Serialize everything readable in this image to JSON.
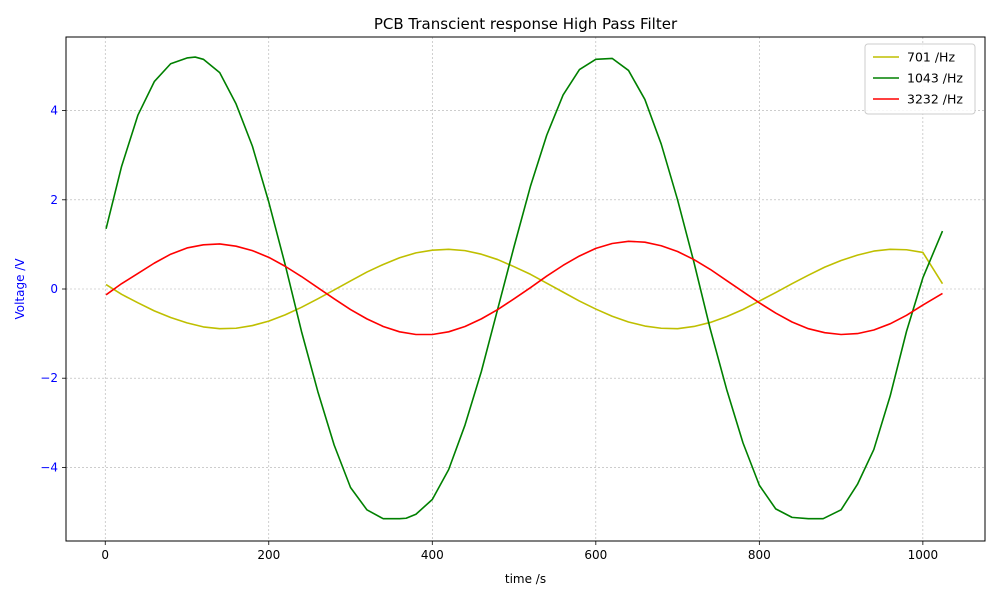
{
  "chart_data": {
    "type": "line",
    "title": "PCB Transcient response High Pass Filter",
    "xlabel": "time /s",
    "ylabel": "Voltage /V",
    "xlim": [
      -48,
      1076
    ],
    "ylim": [
      -5.65,
      5.65
    ],
    "xticks": [
      0,
      200,
      400,
      600,
      800,
      1000
    ],
    "yticks": [
      -4,
      -2,
      0,
      2,
      4
    ],
    "xtick_labels": [
      "0",
      "200",
      "400",
      "600",
      "800",
      "1000"
    ],
    "ytick_labels": [
      "−4",
      "−2",
      "0",
      "2",
      "4"
    ],
    "grid": true,
    "legend_position": "top-right",
    "ylabel_color": "#0000ff",
    "ytick_color": "#0000ff",
    "series": [
      {
        "name": "701 /Hz",
        "color": "#bfbf00",
        "x": [
          1,
          20,
          40,
          60,
          80,
          100,
          120,
          140,
          160,
          180,
          200,
          220,
          240,
          260,
          280,
          300,
          320,
          340,
          360,
          380,
          400,
          420,
          440,
          460,
          480,
          500,
          520,
          540,
          560,
          580,
          600,
          620,
          640,
          660,
          680,
          700,
          720,
          740,
          760,
          780,
          800,
          820,
          840,
          860,
          880,
          900,
          920,
          940,
          960,
          980,
          1000,
          1024
        ],
        "y": [
          0.1,
          -0.12,
          -0.31,
          -0.49,
          -0.64,
          -0.76,
          -0.85,
          -0.89,
          -0.88,
          -0.82,
          -0.72,
          -0.58,
          -0.41,
          -0.22,
          -0.02,
          0.18,
          0.38,
          0.55,
          0.7,
          0.81,
          0.87,
          0.89,
          0.86,
          0.78,
          0.66,
          0.5,
          0.33,
          0.13,
          -0.07,
          -0.27,
          -0.45,
          -0.61,
          -0.74,
          -0.83,
          -0.88,
          -0.89,
          -0.84,
          -0.75,
          -0.62,
          -0.46,
          -0.27,
          -0.08,
          0.12,
          0.31,
          0.49,
          0.64,
          0.76,
          0.85,
          0.89,
          0.88,
          0.82,
          0.12
        ]
      },
      {
        "name": "1043 /Hz",
        "color": "#008000",
        "x": [
          1,
          20,
          40,
          60,
          80,
          100,
          110,
          120,
          140,
          160,
          180,
          200,
          220,
          240,
          260,
          280,
          300,
          320,
          340,
          360,
          368,
          380,
          400,
          420,
          440,
          460,
          480,
          500,
          520,
          540,
          560,
          580,
          600,
          620,
          640,
          660,
          680,
          700,
          720,
          740,
          760,
          780,
          800,
          820,
          840,
          860,
          878,
          900,
          920,
          940,
          960,
          980,
          1000,
          1024
        ],
        "y": [
          1.35,
          2.75,
          3.9,
          4.65,
          5.05,
          5.18,
          5.2,
          5.15,
          4.85,
          4.15,
          3.2,
          1.95,
          0.55,
          -0.95,
          -2.3,
          -3.5,
          -4.45,
          -4.95,
          -5.15,
          -5.15,
          -5.14,
          -5.05,
          -4.72,
          -4.05,
          -3.05,
          -1.85,
          -0.45,
          0.95,
          2.3,
          3.45,
          4.35,
          4.92,
          5.15,
          5.17,
          4.9,
          4.25,
          3.25,
          2.0,
          0.6,
          -0.9,
          -2.25,
          -3.45,
          -4.4,
          -4.93,
          -5.12,
          -5.15,
          -5.15,
          -4.95,
          -4.38,
          -3.6,
          -2.4,
          -0.95,
          0.25,
          1.3
        ]
      },
      {
        "name": "3232 /Hz",
        "color": "#ff0000",
        "x": [
          1,
          20,
          40,
          60,
          80,
          100,
          120,
          140,
          160,
          180,
          200,
          220,
          240,
          260,
          280,
          300,
          320,
          340,
          360,
          380,
          400,
          420,
          440,
          460,
          480,
          500,
          520,
          540,
          560,
          580,
          600,
          620,
          640,
          660,
          680,
          700,
          720,
          740,
          760,
          780,
          800,
          820,
          840,
          860,
          880,
          900,
          920,
          940,
          960,
          980,
          1000,
          1024
        ],
        "y": [
          -0.13,
          0.12,
          0.35,
          0.58,
          0.78,
          0.92,
          0.99,
          1.01,
          0.96,
          0.86,
          0.71,
          0.51,
          0.28,
          0.03,
          -0.22,
          -0.46,
          -0.67,
          -0.84,
          -0.96,
          -1.02,
          -1.02,
          -0.96,
          -0.84,
          -0.67,
          -0.46,
          -0.22,
          0.03,
          0.29,
          0.53,
          0.74,
          0.91,
          1.02,
          1.07,
          1.05,
          0.97,
          0.84,
          0.66,
          0.44,
          0.19,
          -0.06,
          -0.31,
          -0.54,
          -0.74,
          -0.89,
          -0.98,
          -1.02,
          -1.0,
          -0.92,
          -0.78,
          -0.59,
          -0.36,
          -0.1
        ]
      }
    ]
  }
}
